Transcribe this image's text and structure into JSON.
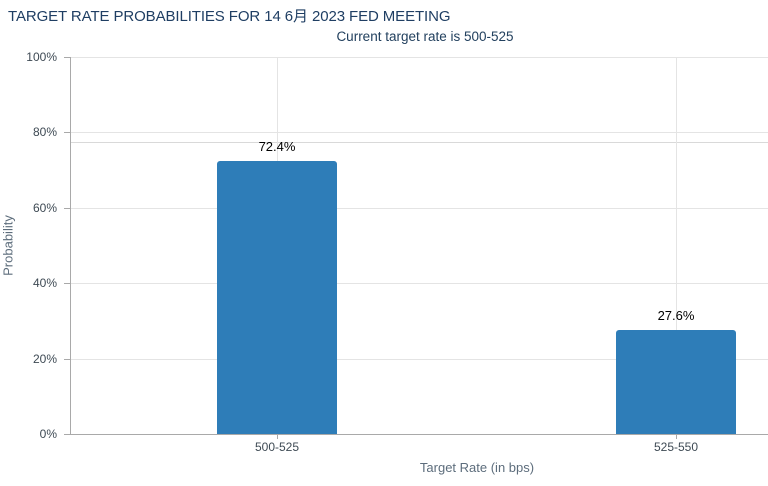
{
  "chart_data": {
    "type": "bar",
    "title": "TARGET RATE PROBABILITIES FOR 14 6月 2023 FED MEETING",
    "subtitle": "Current target rate is 500-525",
    "xlabel": "Target Rate (in bps)",
    "ylabel": "Probability",
    "categories": [
      "500-525",
      "525-550"
    ],
    "values": [
      72.4,
      27.6
    ],
    "value_labels": [
      "72.4%",
      "27.6%"
    ],
    "ylim": [
      0,
      100
    ],
    "ytick_interval": 20,
    "ytick_labels": [
      "0%",
      "20%",
      "40%",
      "60%",
      "80%",
      "100%"
    ],
    "grid": true,
    "legend": "none",
    "reference_line_percent": 77.5,
    "colors": {
      "bar": "#2e7db8",
      "title": "#1f3e63",
      "subtitle": "#22405e",
      "tick_label": "#3e4a54",
      "axis_title": "#5d6d7c",
      "data_label": "#000000",
      "gridline": "#e4e4e4",
      "reference_line": "#d9d9d9",
      "axis_line": "#a9a9a9",
      "background": "#ffffff"
    }
  }
}
